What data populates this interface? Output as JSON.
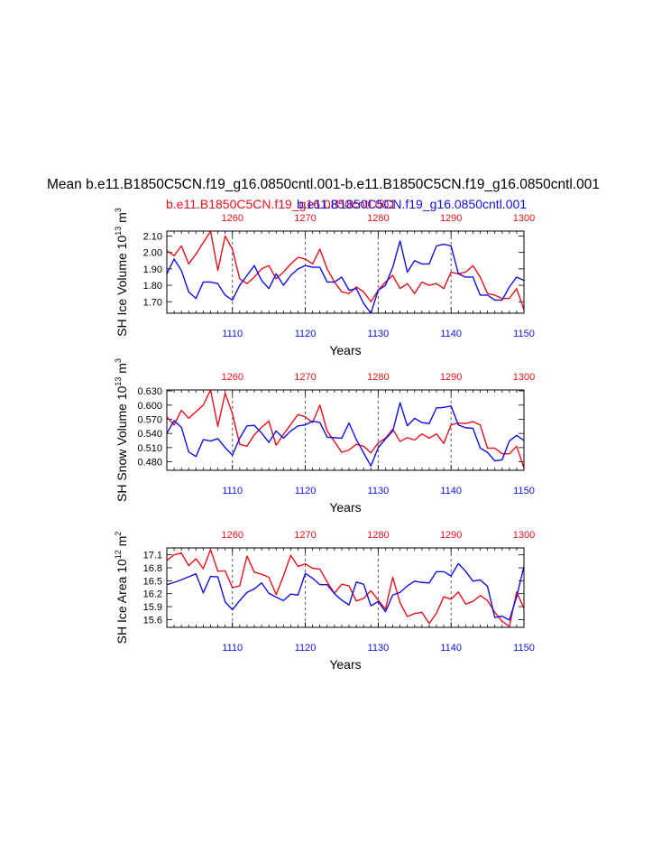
{
  "figure": {
    "title": "Mean b.e11.B1850C5CN.f19_g16.0850cntl.001-b.e11.B1850C5CN.f19_g16.0850cntl.001",
    "subtitle_red": "b.e11.B1850C5CN.f19_g16.0850cntl.001",
    "subtitle_blue": "b.e11.B1850C5CN.f19_g16.0850cntl.001",
    "colors": {
      "red_series": "#e8111a",
      "blue_series": "#1010e6",
      "axis": "#000000"
    }
  },
  "chart_data": [
    {
      "type": "line",
      "ylabel": "SH Ice Volume 10",
      "ylabel_exp": "13",
      "ylabel_unit": " m",
      "ylabel_unit_exp": "3",
      "xlabel": "Years",
      "xlim": [
        1101,
        1150
      ],
      "top_xlim": [
        1251,
        1300
      ],
      "ylim": [
        1.63,
        2.13
      ],
      "yticks": [
        1.7,
        1.8,
        1.9,
        2.0,
        2.1
      ],
      "ytick_labels": [
        "1.70",
        "1.80",
        "1.90",
        "2.00",
        "2.10"
      ],
      "xticks": [
        1110,
        1120,
        1130,
        1140,
        1150
      ],
      "xtick_labels": [
        "1110",
        "1120",
        "1130",
        "1140",
        "1150"
      ],
      "top_xticks": [
        1260,
        1270,
        1280,
        1290,
        1300
      ],
      "top_xtick_labels": [
        "1260",
        "1270",
        "1280",
        "1290",
        "1300"
      ],
      "series": [
        {
          "name": "b.e11.B1850C5CN.f19_g16.0850cntl.001 (years 1251-1300)",
          "color": "red",
          "x_start": 1101,
          "values": [
            2.01,
            1.98,
            2.04,
            1.93,
            1.99,
            2.06,
            2.13,
            1.89,
            2.1,
            2.02,
            1.84,
            1.81,
            1.85,
            1.9,
            1.92,
            1.84,
            1.88,
            1.93,
            1.97,
            1.96,
            1.93,
            2.02,
            1.9,
            1.82,
            1.76,
            1.75,
            1.79,
            1.76,
            1.7,
            1.77,
            1.82,
            1.86,
            1.78,
            1.81,
            1.75,
            1.82,
            1.8,
            1.81,
            1.78,
            1.88,
            1.87,
            1.88,
            1.92,
            1.85,
            1.75,
            1.74,
            1.72,
            1.72,
            1.78,
            1.65
          ]
        },
        {
          "name": "b.e11.B1850C5CN.f19_g16.0850cntl.001 (years 1101-1150)",
          "color": "blue",
          "x_start": 1101,
          "values": [
            1.87,
            1.96,
            1.89,
            1.76,
            1.72,
            1.82,
            1.82,
            1.81,
            1.74,
            1.71,
            1.8,
            1.86,
            1.92,
            1.83,
            1.78,
            1.87,
            1.8,
            1.86,
            1.9,
            1.92,
            1.91,
            1.91,
            1.82,
            1.82,
            1.85,
            1.77,
            1.78,
            1.69,
            1.63,
            1.77,
            1.8,
            1.91,
            2.07,
            1.88,
            1.95,
            1.93,
            1.93,
            2.04,
            2.05,
            2.04,
            1.87,
            1.85,
            1.85,
            1.74,
            1.74,
            1.71,
            1.71,
            1.79,
            1.85,
            1.83
          ]
        }
      ]
    },
    {
      "type": "line",
      "ylabel": "SH Snow Volume 10",
      "ylabel_exp": "13",
      "ylabel_unit": " m",
      "ylabel_unit_exp": "3",
      "xlabel": "Years",
      "xlim": [
        1101,
        1150
      ],
      "top_xlim": [
        1251,
        1300
      ],
      "ylim": [
        0.462,
        0.632
      ],
      "yticks": [
        0.48,
        0.51,
        0.54,
        0.57,
        0.6,
        0.63
      ],
      "ytick_labels": [
        "0.480",
        "0.510",
        "0.540",
        "0.570",
        "0.600",
        "0.630"
      ],
      "xticks": [
        1110,
        1120,
        1130,
        1140,
        1150
      ],
      "xtick_labels": [
        "1110",
        "1120",
        "1130",
        "1140",
        "1150"
      ],
      "top_xticks": [
        1260,
        1270,
        1280,
        1290,
        1300
      ],
      "top_xtick_labels": [
        "1260",
        "1270",
        "1280",
        "1290",
        "1300"
      ],
      "series": [
        {
          "name": "b.e11.B1850C5CN.f19_g16.0850cntl.001 (years 1251-1300)",
          "color": "red",
          "x_start": 1101,
          "values": [
            0.575,
            0.558,
            0.589,
            0.572,
            0.586,
            0.6,
            0.632,
            0.555,
            0.625,
            0.582,
            0.517,
            0.513,
            0.537,
            0.553,
            0.566,
            0.515,
            0.538,
            0.559,
            0.58,
            0.575,
            0.563,
            0.6,
            0.545,
            0.523,
            0.5,
            0.505,
            0.517,
            0.513,
            0.499,
            0.52,
            0.53,
            0.549,
            0.523,
            0.531,
            0.526,
            0.539,
            0.53,
            0.539,
            0.519,
            0.558,
            0.562,
            0.561,
            0.565,
            0.558,
            0.509,
            0.509,
            0.497,
            0.497,
            0.513,
            0.467
          ]
        },
        {
          "name": "b.e11.B1850C5CN.f19_g16.0850cntl.001 (years 1101-1150)",
          "color": "blue",
          "x_start": 1101,
          "values": [
            0.54,
            0.567,
            0.553,
            0.501,
            0.491,
            0.527,
            0.524,
            0.529,
            0.51,
            0.494,
            0.53,
            0.556,
            0.557,
            0.541,
            0.521,
            0.545,
            0.53,
            0.545,
            0.556,
            0.558,
            0.566,
            0.563,
            0.532,
            0.531,
            0.53,
            0.562,
            0.527,
            0.499,
            0.471,
            0.51,
            0.528,
            0.545,
            0.605,
            0.556,
            0.572,
            0.563,
            0.561,
            0.594,
            0.595,
            0.598,
            0.558,
            0.552,
            0.551,
            0.509,
            0.5,
            0.482,
            0.484,
            0.524,
            0.536,
            0.525
          ]
        }
      ]
    },
    {
      "type": "line",
      "ylabel": "SH Ice Area 10",
      "ylabel_exp": "12",
      "ylabel_unit": " m",
      "ylabel_unit_exp": "2",
      "xlabel": "Years",
      "xlim": [
        1101,
        1150
      ],
      "top_xlim": [
        1251,
        1300
      ],
      "ylim": [
        15.42,
        17.26
      ],
      "yticks": [
        15.6,
        15.9,
        16.2,
        16.5,
        16.8,
        17.1
      ],
      "ytick_labels": [
        "15.6",
        "15.9",
        "16.2",
        "16.5",
        "16.8",
        "17.1"
      ],
      "xticks": [
        1110,
        1120,
        1130,
        1140,
        1150
      ],
      "xtick_labels": [
        "1110",
        "1120",
        "1130",
        "1140",
        "1150"
      ],
      "top_xticks": [
        1260,
        1270,
        1280,
        1290,
        1300
      ],
      "top_xtick_labels": [
        "1260",
        "1270",
        "1280",
        "1290",
        "1300"
      ],
      "series": [
        {
          "name": "b.e11.B1850C5CN.f19_g16.0850cntl.001 (years 1251-1300)",
          "color": "red",
          "x_start": 1101,
          "values": [
            16.97,
            17.1,
            17.14,
            16.85,
            17.01,
            16.78,
            17.22,
            16.72,
            16.73,
            16.34,
            16.38,
            17.07,
            16.7,
            16.65,
            16.58,
            16.18,
            16.61,
            17.09,
            16.83,
            16.89,
            16.79,
            16.77,
            16.47,
            16.21,
            16.42,
            16.38,
            16.03,
            16.09,
            16.27,
            16.05,
            15.84,
            16.58,
            15.99,
            15.67,
            15.74,
            15.77,
            15.51,
            15.75,
            16.13,
            16.07,
            16.24,
            15.96,
            16.02,
            16.16,
            16.04,
            15.77,
            15.56,
            15.44,
            16.24,
            15.86
          ]
        },
        {
          "name": "b.e11.B1850C5CN.f19_g16.0850cntl.001 (years 1101-1150)",
          "color": "blue",
          "x_start": 1101,
          "values": [
            16.41,
            16.46,
            16.52,
            16.59,
            16.66,
            16.22,
            16.6,
            16.59,
            16.01,
            15.83,
            16.04,
            16.23,
            16.31,
            16.45,
            16.21,
            16.12,
            16.04,
            16.19,
            16.17,
            16.67,
            16.56,
            16.41,
            16.41,
            16.2,
            16.05,
            15.94,
            16.47,
            16.42,
            15.92,
            16.02,
            15.78,
            16.17,
            16.23,
            16.38,
            16.49,
            16.46,
            16.45,
            16.71,
            16.71,
            16.61,
            16.9,
            16.72,
            16.49,
            16.52,
            16.37,
            15.65,
            15.68,
            15.59,
            16.13,
            16.83
          ]
        }
      ]
    }
  ]
}
